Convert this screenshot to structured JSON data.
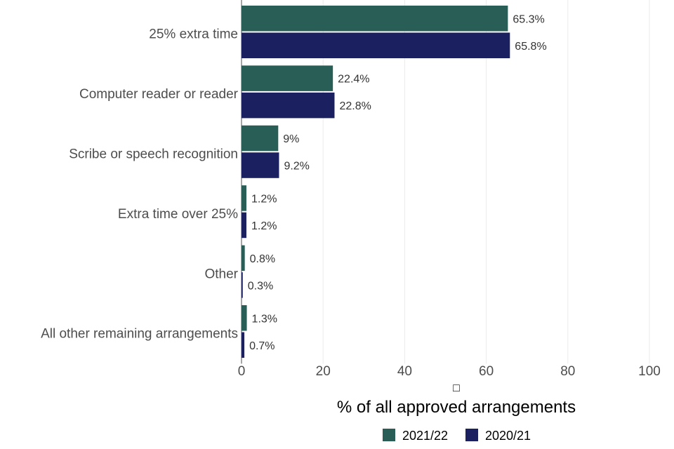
{
  "chart_data": {
    "type": "bar",
    "orientation": "horizontal",
    "categories": [
      "25% extra time",
      "Computer reader or reader",
      "Scribe or speech recognition",
      "Extra time over 25%",
      "Other",
      "All other remaining arrangements"
    ],
    "series": [
      {
        "name": "2021/22",
        "color": "#285e56",
        "values": [
          65.3,
          22.4,
          9,
          1.2,
          0.8,
          1.3
        ],
        "labels": [
          "65.3%",
          "22.4%",
          "9%",
          "1.2%",
          "0.8%",
          "1.3%"
        ]
      },
      {
        "name": "2020/21",
        "color": "#1b2160",
        "values": [
          65.8,
          22.8,
          9.2,
          1.2,
          0.3,
          0.7
        ],
        "labels": [
          "65.8%",
          "22.8%",
          "9.2%",
          "1.2%",
          "0.3%",
          "0.7%"
        ]
      }
    ],
    "xlabel": "% of all approved arrangements",
    "xlim": [
      0,
      100
    ],
    "xticks": [
      "0",
      "20",
      "40",
      "60",
      "80",
      "100"
    ],
    "grid": "vertical",
    "legend_position": "bottom",
    "axis_glyph": "□"
  }
}
